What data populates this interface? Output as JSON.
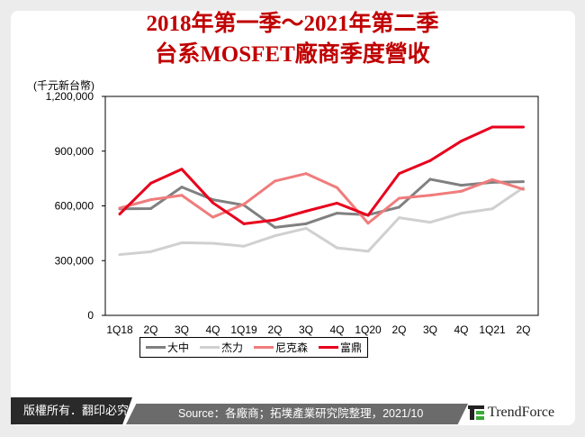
{
  "title_line1": "2018年第一季～2021年第二季",
  "title_line2": "台系MOSFET廠商季度營收",
  "footer": {
    "copyright": "版權所有．翻印必究",
    "source": "Source：各廠商；拓墣產業研究院整理，2021/10",
    "logo_text": "TrendForce"
  },
  "chart_data": {
    "type": "line",
    "title": "2018年第一季～2021年第二季 台系MOSFET廠商季度營收",
    "ylabel": "(千元新台幣)",
    "xlabel": "",
    "ylim": [
      0,
      1200000
    ],
    "yticks": [
      0,
      300000,
      600000,
      900000,
      1200000
    ],
    "ytick_labels": [
      "0",
      "300,000",
      "600,000",
      "900,000",
      "1,200,000"
    ],
    "categories": [
      "1Q18",
      "2Q",
      "3Q",
      "4Q",
      "1Q19",
      "2Q",
      "3Q",
      "4Q",
      "1Q20",
      "2Q",
      "3Q",
      "4Q",
      "1Q21",
      "2Q"
    ],
    "legend_position": "bottom",
    "grid": false,
    "series": [
      {
        "name": "大中",
        "color": "#808080",
        "values": [
          584000,
          585000,
          703000,
          634000,
          604000,
          482000,
          502000,
          560000,
          551000,
          593000,
          746000,
          713000,
          729000,
          733000
        ]
      },
      {
        "name": "杰力",
        "color": "#d0d0d0",
        "values": [
          333000,
          349000,
          398000,
          395000,
          379000,
          436000,
          477000,
          370000,
          351000,
          535000,
          510000,
          560000,
          584000,
          700000
        ]
      },
      {
        "name": "尼克森",
        "color": "#f07c7c",
        "values": [
          588000,
          634000,
          658000,
          538000,
          609000,
          736000,
          777000,
          700000,
          505000,
          642000,
          658000,
          680000,
          744000,
          691000
        ]
      },
      {
        "name": "富鼎",
        "color": "#e8001c",
        "values": [
          555000,
          724000,
          801000,
          617000,
          502000,
          523000,
          571000,
          615000,
          548000,
          777000,
          848000,
          955000,
          1032000,
          1032000
        ]
      }
    ]
  }
}
